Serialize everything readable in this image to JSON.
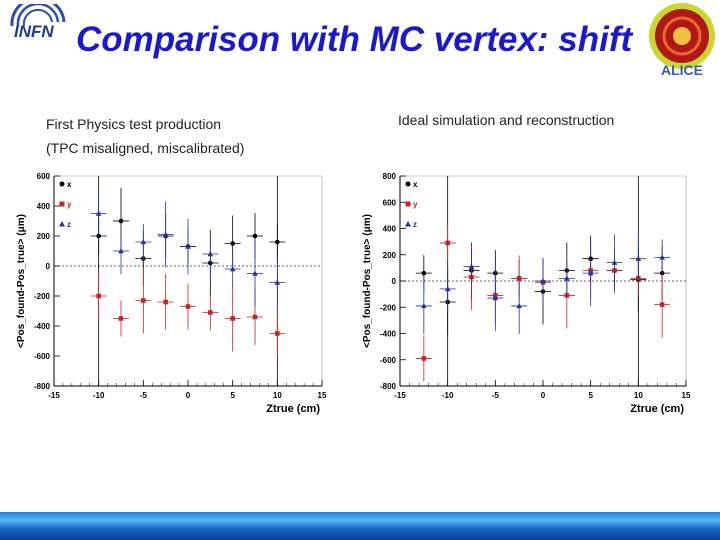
{
  "header": {
    "logo_text": "INFN",
    "title": "Comparison with MC vertex: shift",
    "alice_logo_text": "ALICE"
  },
  "colors": {
    "title": "#1a1acc",
    "x_series": "#000000",
    "y_series": "#cc2222",
    "z_series": "#2233aa"
  },
  "left_panel": {
    "subtitle_line1": "First Physics test production",
    "subtitle_line2": "(TPC misaligned, miscalibrated)"
  },
  "right_panel": {
    "subtitle": "Ideal simulation and reconstruction"
  },
  "chart_data": [
    {
      "type": "scatter",
      "title": "",
      "xlabel": "Ztrue (cm)",
      "ylabel": "<Pos_found-Pos_true> (μm)",
      "xlim": [
        -15,
        15
      ],
      "ylim": [
        -800,
        600
      ],
      "xticks": [
        -15,
        -10,
        -5,
        0,
        5,
        10,
        15
      ],
      "yticks": [
        600,
        400,
        200,
        0,
        -200,
        -400,
        -600,
        -800
      ],
      "legend": [
        "x",
        "y",
        "z"
      ],
      "series": [
        {
          "name": "x",
          "x": [
            -10,
            -7.5,
            -5,
            -2.5,
            0,
            2.5,
            5,
            7.5,
            10
          ],
          "y": [
            200,
            300,
            50,
            200,
            130,
            20,
            150,
            200,
            160
          ]
        },
        {
          "name": "y",
          "x": [
            -10,
            -7.5,
            -5,
            -2.5,
            0,
            2.5,
            5,
            7.5,
            10
          ],
          "y": [
            -200,
            -350,
            -230,
            -240,
            -270,
            -310,
            -350,
            -340,
            -450
          ]
        },
        {
          "name": "z",
          "x": [
            -10,
            -7.5,
            -5,
            -2.5,
            0,
            2.5,
            5,
            7.5,
            10
          ],
          "y": [
            350,
            100,
            160,
            210,
            130,
            80,
            -20,
            -50,
            -110
          ]
        }
      ]
    },
    {
      "type": "scatter",
      "title": "",
      "xlabel": "Ztrue (cm)",
      "ylabel": "<Pos_found-Pos_true> (μm)",
      "xlim": [
        -15,
        15
      ],
      "ylim": [
        -800,
        800
      ],
      "xticks": [
        -15,
        -10,
        -5,
        0,
        5,
        10,
        15
      ],
      "yticks": [
        800,
        600,
        400,
        200,
        0,
        -200,
        -400,
        -600,
        -800
      ],
      "legend": [
        "x",
        "y",
        "z"
      ],
      "series": [
        {
          "name": "x",
          "x": [
            -12.5,
            -10,
            -7.5,
            -5,
            -2.5,
            0,
            2.5,
            5,
            7.5,
            10,
            12.5
          ],
          "y": [
            60,
            -160,
            80,
            60,
            20,
            -80,
            80,
            170,
            80,
            10,
            60
          ]
        },
        {
          "name": "y",
          "x": [
            -12.5,
            -10,
            -7.5,
            -5,
            -2.5,
            0,
            2.5,
            5,
            7.5,
            10,
            12.5
          ],
          "y": [
            -590,
            290,
            30,
            -110,
            20,
            -10,
            -110,
            80,
            80,
            20,
            -180
          ]
        },
        {
          "name": "z",
          "x": [
            -12.5,
            -10,
            -7.5,
            -5,
            -2.5,
            0,
            2.5,
            5,
            7.5,
            10,
            12.5
          ],
          "y": [
            -190,
            -60,
            110,
            -130,
            -190,
            0,
            20,
            60,
            140,
            170,
            180
          ]
        }
      ]
    }
  ]
}
